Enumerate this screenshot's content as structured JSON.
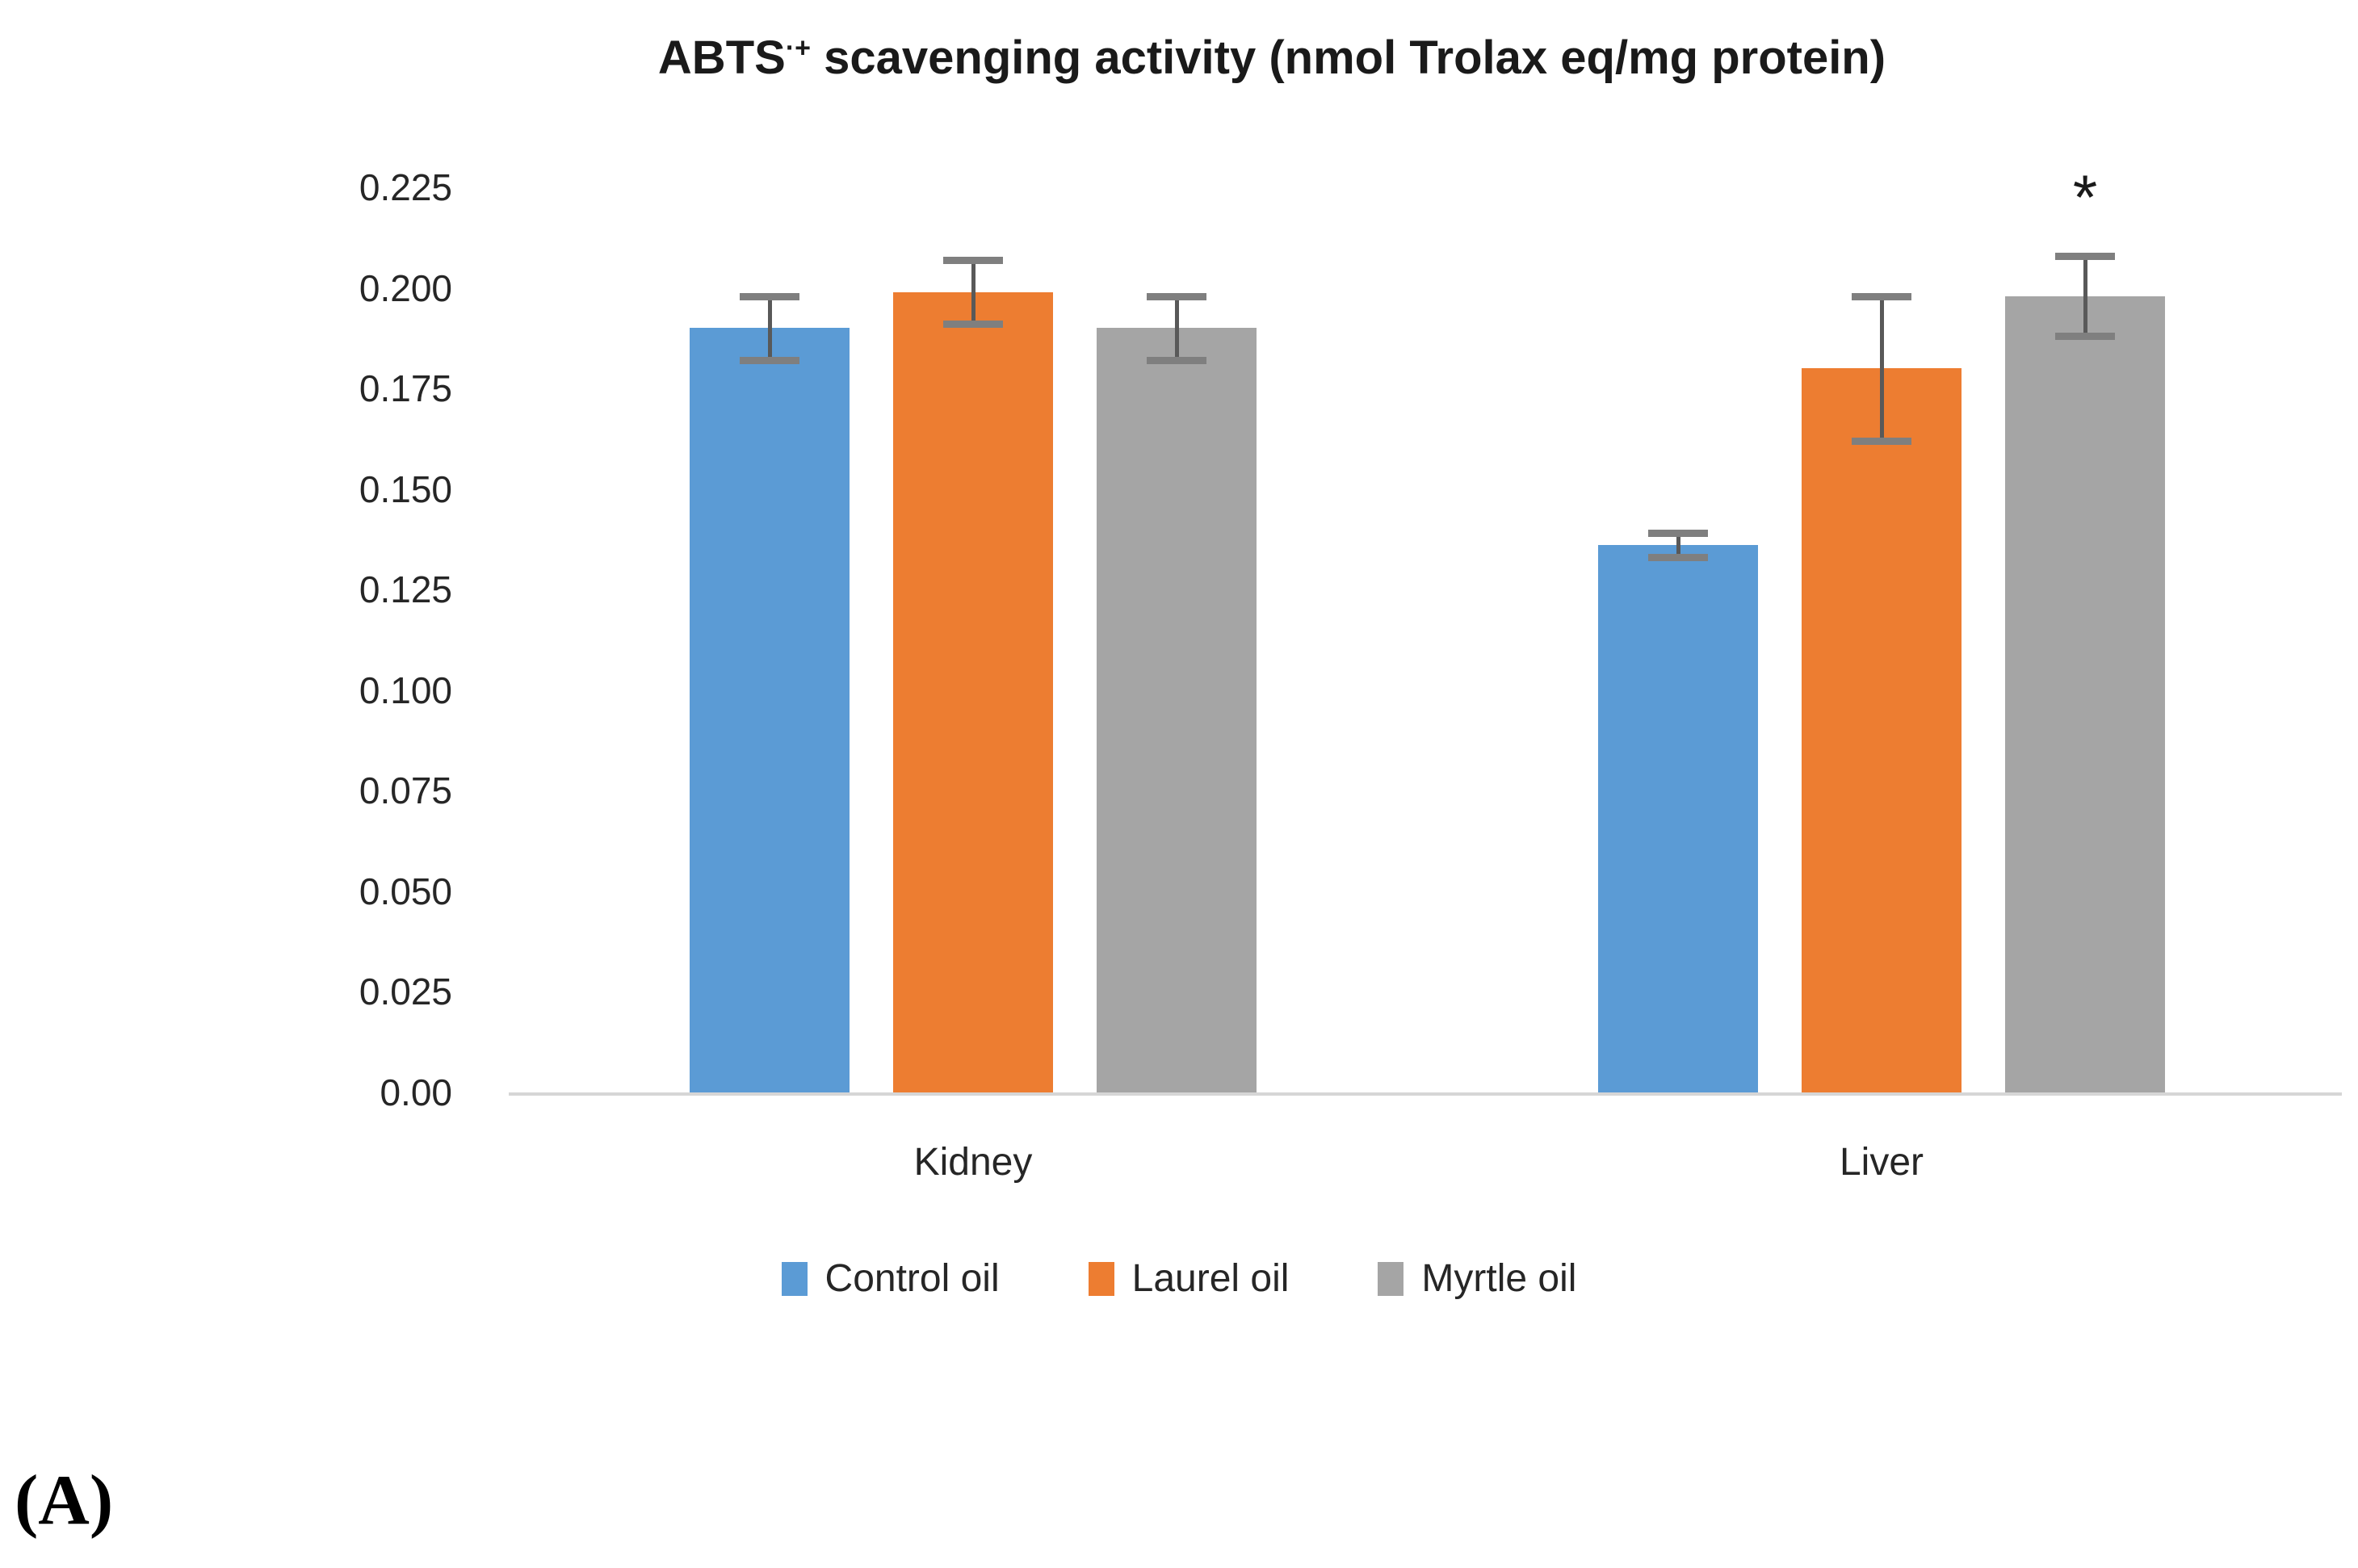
{
  "figure_label": "(A)",
  "chart_data": {
    "type": "bar",
    "title": "ABTS·+ scavenging activity (nmol Trolax eq/mg protein)",
    "title_base": "ABTS",
    "title_superscript": "·+",
    "title_rest": " scavenging activity (nmol Trolax eq/mg protein)",
    "categories": [
      "Kidney",
      "Liver"
    ],
    "series": [
      {
        "name": "Control oil",
        "color": "#5B9BD5",
        "values": [
          0.19,
          0.136
        ],
        "errors": [
          0.008,
          0.003
        ]
      },
      {
        "name": "Laurel oil",
        "color": "#ED7D31",
        "values": [
          0.199,
          0.18
        ],
        "errors": [
          0.008,
          0.018
        ]
      },
      {
        "name": "Myrtle oil",
        "color": "#A5A5A5",
        "values": [
          0.19,
          0.198
        ],
        "errors": [
          0.008,
          0.01
        ]
      }
    ],
    "y_ticks": [
      "0.225",
      "0.200",
      "0.175",
      "0.150",
      "0.125",
      "0.100",
      "0.075",
      "0.050",
      "0.025",
      "0.00"
    ],
    "ylim": [
      0,
      0.225
    ],
    "xlabel": "",
    "ylabel": "",
    "grid": false,
    "legend_position": "bottom",
    "annotations": [
      {
        "text": "*",
        "category_index": 1,
        "series_index": 2
      }
    ]
  },
  "colors": {
    "error_bar": "#595959",
    "error_cap": "#7f7f7f",
    "axis_line": "#d6d6d6",
    "text": "#262626"
  }
}
